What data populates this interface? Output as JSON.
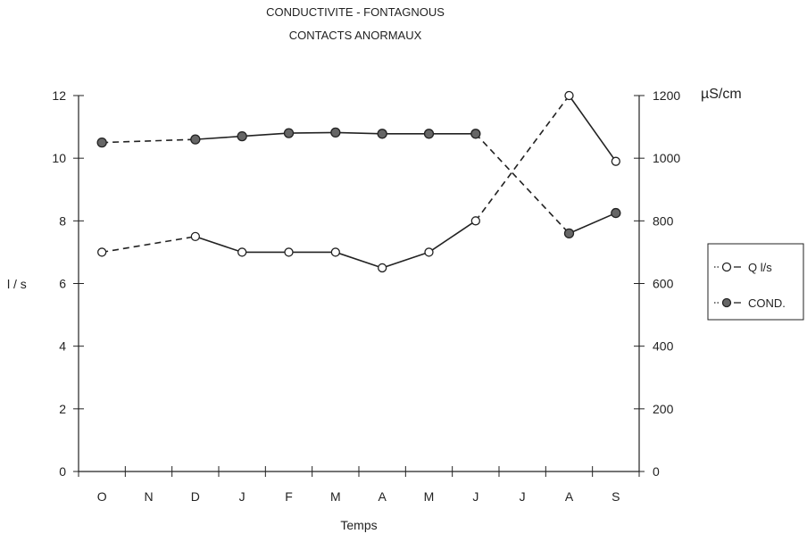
{
  "chart_data": {
    "type": "line",
    "title": "CONDUCTIVITE - FONTAGNOUS",
    "subtitle": "CONTACTS ANORMAUX",
    "xlabel": "Temps",
    "ylabel": "l / s",
    "y2label": "µS/cm",
    "categories": [
      "O",
      "N",
      "D",
      "J",
      "F",
      "M",
      "A",
      "M",
      "J",
      "J",
      "A",
      "S"
    ],
    "ylim": [
      0,
      12
    ],
    "y2lim": [
      0,
      1200
    ],
    "yticks": [
      "0",
      "2",
      "4",
      "6",
      "8",
      "10",
      "12"
    ],
    "y2ticks": [
      "0",
      "200",
      "400",
      "600",
      "800",
      "1000",
      "1200"
    ],
    "grid": false,
    "legend_position": "right",
    "series": [
      {
        "name": "Q  l/s",
        "legend_label": "Q  l/s",
        "axis": "left",
        "marker": "open-circle",
        "values": [
          7.0,
          null,
          7.5,
          7.0,
          7.0,
          7.0,
          6.5,
          7.0,
          8.0,
          null,
          12.0,
          9.9
        ],
        "segment_styles": [
          "dashed",
          "dashed",
          "solid",
          "solid",
          "solid",
          "solid",
          "solid",
          "solid",
          "dashed",
          "dashed",
          "solid"
        ]
      },
      {
        "name": "COND.",
        "legend_label": "COND.",
        "axis": "right",
        "marker": "filled-circle",
        "values": [
          1050,
          null,
          1060,
          1070,
          1080,
          1082,
          1078,
          1078,
          1078,
          null,
          760,
          825
        ],
        "segment_styles": [
          "dashed",
          "dashed",
          "solid",
          "solid",
          "solid",
          "solid",
          "solid",
          "solid",
          "dashed",
          "dashed",
          "solid"
        ]
      }
    ],
    "colors": {
      "line": "#222222",
      "filled_marker": "#666666"
    }
  }
}
